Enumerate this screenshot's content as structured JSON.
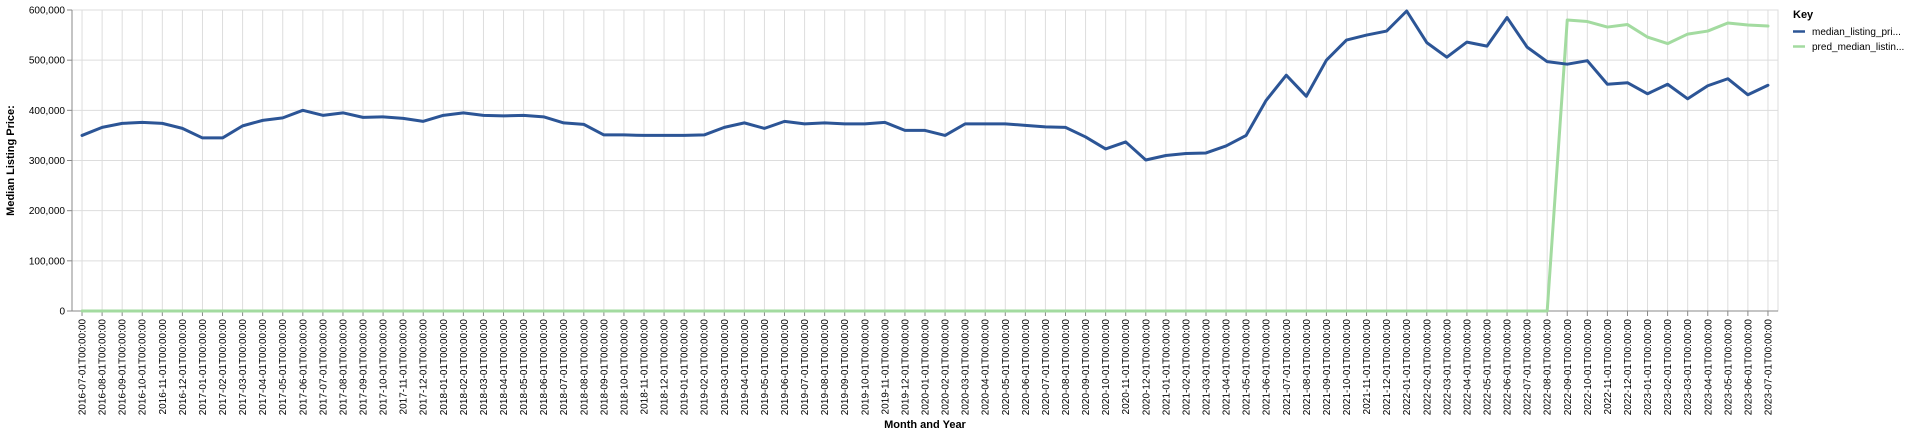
{
  "chart_data": {
    "type": "line",
    "xlabel": "Month and Year",
    "ylabel": "Median Listing Price:",
    "ylim": [
      0,
      600000
    ],
    "yticks": [
      "0",
      "100,000",
      "200,000",
      "300,000",
      "400,000",
      "500,000",
      "600,000"
    ],
    "grid": true,
    "legend": {
      "title": "Key",
      "placement": "top-right",
      "entries": [
        "median_listing_pri...",
        "pred_median_listin..."
      ]
    },
    "x": [
      "2016-07-01T00:00:00",
      "2016-08-01T00:00:00",
      "2016-09-01T00:00:00",
      "2016-10-01T00:00:00",
      "2016-11-01T00:00:00",
      "2016-12-01T00:00:00",
      "2017-01-01T00:00:00",
      "2017-02-01T00:00:00",
      "2017-03-01T00:00:00",
      "2017-04-01T00:00:00",
      "2017-05-01T00:00:00",
      "2017-06-01T00:00:00",
      "2017-07-01T00:00:00",
      "2017-08-01T00:00:00",
      "2017-09-01T00:00:00",
      "2017-10-01T00:00:00",
      "2017-11-01T00:00:00",
      "2017-12-01T00:00:00",
      "2018-01-01T00:00:00",
      "2018-02-01T00:00:00",
      "2018-03-01T00:00:00",
      "2018-04-01T00:00:00",
      "2018-05-01T00:00:00",
      "2018-06-01T00:00:00",
      "2018-07-01T00:00:00",
      "2018-08-01T00:00:00",
      "2018-09-01T00:00:00",
      "2018-10-01T00:00:00",
      "2018-11-01T00:00:00",
      "2018-12-01T00:00:00",
      "2019-01-01T00:00:00",
      "2019-02-01T00:00:00",
      "2019-03-01T00:00:00",
      "2019-04-01T00:00:00",
      "2019-05-01T00:00:00",
      "2019-06-01T00:00:00",
      "2019-07-01T00:00:00",
      "2019-08-01T00:00:00",
      "2019-09-01T00:00:00",
      "2019-10-01T00:00:00",
      "2019-11-01T00:00:00",
      "2019-12-01T00:00:00",
      "2020-01-01T00:00:00",
      "2020-02-01T00:00:00",
      "2020-03-01T00:00:00",
      "2020-04-01T00:00:00",
      "2020-05-01T00:00:00",
      "2020-06-01T00:00:00",
      "2020-07-01T00:00:00",
      "2020-08-01T00:00:00",
      "2020-09-01T00:00:00",
      "2020-10-01T00:00:00",
      "2020-11-01T00:00:00",
      "2020-12-01T00:00:00",
      "2021-01-01T00:00:00",
      "2021-02-01T00:00:00",
      "2021-03-01T00:00:00",
      "2021-04-01T00:00:00",
      "2021-05-01T00:00:00",
      "2021-06-01T00:00:00",
      "2021-07-01T00:00:00",
      "2021-08-01T00:00:00",
      "2021-09-01T00:00:00",
      "2021-10-01T00:00:00",
      "2021-11-01T00:00:00",
      "2021-12-01T00:00:00",
      "2022-01-01T00:00:00",
      "2022-02-01T00:00:00",
      "2022-03-01T00:00:00",
      "2022-04-01T00:00:00",
      "2022-05-01T00:00:00",
      "2022-06-01T00:00:00",
      "2022-07-01T00:00:00",
      "2022-08-01T00:00:00",
      "2022-09-01T00:00:00",
      "2022-10-01T00:00:00",
      "2022-11-01T00:00:00",
      "2022-12-01T00:00:00",
      "2023-01-01T00:00:00",
      "2023-02-01T00:00:00",
      "2023-03-01T00:00:00",
      "2023-04-01T00:00:00",
      "2023-05-01T00:00:00",
      "2023-06-01T00:00:00",
      "2023-07-01T00:00:00"
    ],
    "series": [
      {
        "name": "median_listing_pri...",
        "color": "#2c5596",
        "values": [
          350000,
          366000,
          374000,
          376000,
          374000,
          364000,
          345000,
          345000,
          369000,
          380000,
          385000,
          400000,
          390000,
          395000,
          386000,
          387000,
          384000,
          378000,
          390000,
          395000,
          390000,
          389000,
          390000,
          387000,
          375000,
          372000,
          351000,
          351000,
          350000,
          350000,
          350000,
          351000,
          366000,
          375000,
          364000,
          378000,
          373000,
          375000,
          373000,
          373000,
          376000,
          360000,
          360000,
          350000,
          373000,
          373000,
          373000,
          370000,
          367000,
          366000,
          347000,
          323000,
          337000,
          301000,
          310000,
          314000,
          315000,
          329000,
          350000,
          420000,
          470000,
          428000,
          500000,
          540000,
          550000,
          558000,
          598000,
          535000,
          506000,
          536000,
          528000,
          585000,
          526000,
          497000,
          492000,
          499000,
          452000,
          455000,
          433000,
          452000,
          423000,
          449000,
          463000,
          431000,
          450000
        ]
      },
      {
        "name": "pred_median_listin...",
        "color": "#a3dba0",
        "values": [
          0,
          0,
          0,
          0,
          0,
          0,
          0,
          0,
          0,
          0,
          0,
          0,
          0,
          0,
          0,
          0,
          0,
          0,
          0,
          0,
          0,
          0,
          0,
          0,
          0,
          0,
          0,
          0,
          0,
          0,
          0,
          0,
          0,
          0,
          0,
          0,
          0,
          0,
          0,
          0,
          0,
          0,
          0,
          0,
          0,
          0,
          0,
          0,
          0,
          0,
          0,
          0,
          0,
          0,
          0,
          0,
          0,
          0,
          0,
          0,
          0,
          0,
          0,
          0,
          0,
          0,
          0,
          0,
          0,
          0,
          0,
          0,
          0,
          0,
          580000,
          577000,
          566000,
          571000,
          546000,
          533000,
          552000,
          558000,
          574000,
          570000,
          568000
        ]
      }
    ]
  }
}
